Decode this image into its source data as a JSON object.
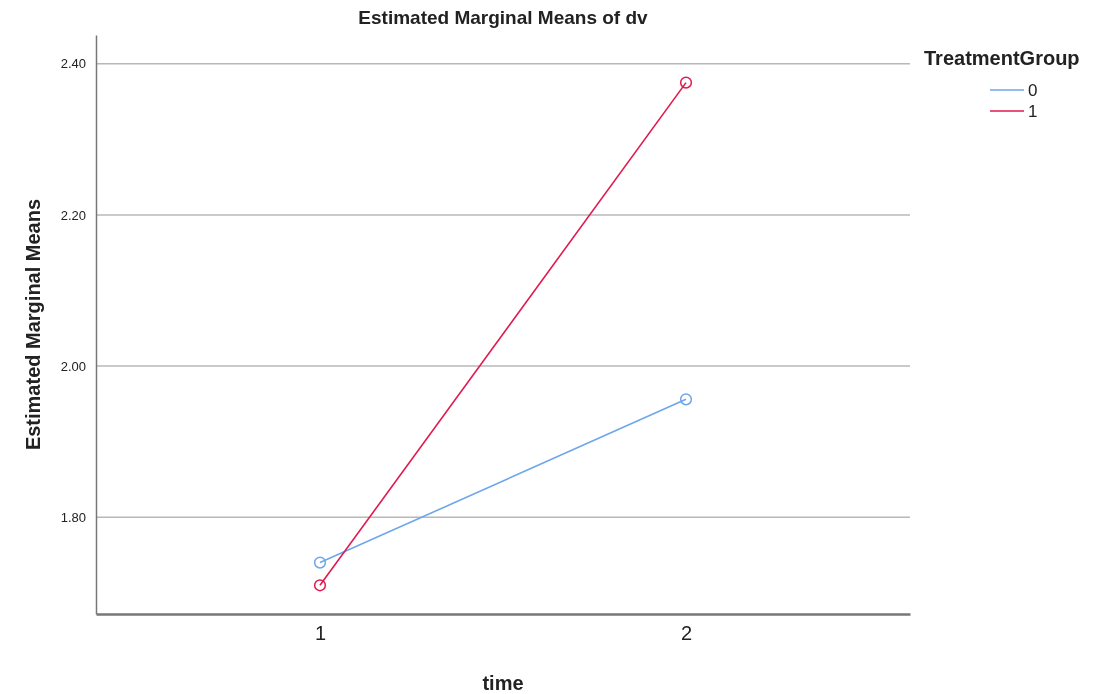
{
  "chart_data": {
    "type": "line",
    "title": "Estimated Marginal Means of dv",
    "xlabel": "time",
    "ylabel": "Estimated Marginal Means",
    "legend_title": "TreatmentGroup",
    "categories": [
      "1",
      "2"
    ],
    "series": [
      {
        "name": "0",
        "color": "#6ea6ea",
        "values": [
          1.74,
          1.956
        ]
      },
      {
        "name": "1",
        "color": "#e0194f",
        "values": [
          1.71,
          2.375
        ]
      }
    ],
    "ylim": [
      1.672,
      2.438
    ],
    "yticks": [
      {
        "value": 1.8,
        "label": "1.80"
      },
      {
        "value": 2.0,
        "label": "2.00"
      },
      {
        "value": 2.2,
        "label": "2.20"
      },
      {
        "value": 2.4,
        "label": "2.40"
      }
    ],
    "grid": "y",
    "legend": "top right",
    "marker": "circle",
    "line_style": "solid"
  }
}
